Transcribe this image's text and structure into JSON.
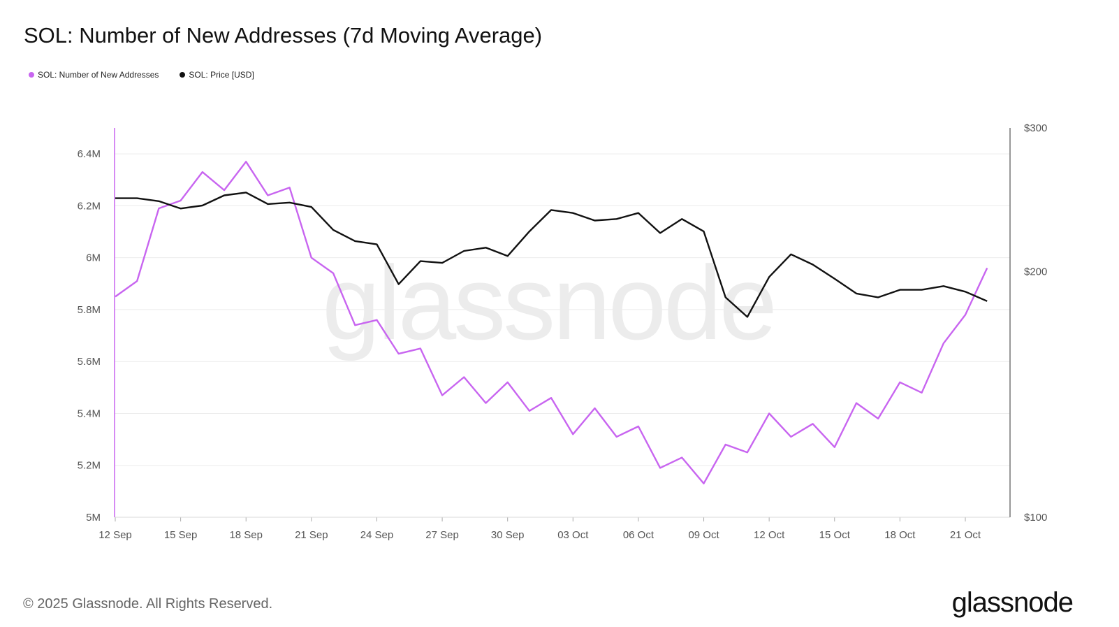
{
  "title": "SOL: Number of New Addresses (7d Moving Average)",
  "legend": [
    {
      "label": "SOL: Number of New Addresses",
      "color": "#c865f0"
    },
    {
      "label": "SOL: Price [USD]",
      "color": "#111111"
    }
  ],
  "watermark": "glassnode",
  "footer": "© 2025 Glassnode. All Rights Reserved.",
  "logo": "glassnode",
  "chart_data": {
    "type": "line",
    "title": "SOL: Number of New Addresses (7d Moving Average)",
    "x": [
      "2025-09-12",
      "2025-09-13",
      "2025-09-14",
      "2025-09-15",
      "2025-09-16",
      "2025-09-17",
      "2025-09-18",
      "2025-09-19",
      "2025-09-20",
      "2025-09-21",
      "2025-09-22",
      "2025-09-23",
      "2025-09-24",
      "2025-09-25",
      "2025-09-26",
      "2025-09-27",
      "2025-09-28",
      "2025-09-29",
      "2025-09-30",
      "2025-10-01",
      "2025-10-02",
      "2025-10-03",
      "2025-10-04",
      "2025-10-05",
      "2025-10-06",
      "2025-10-07",
      "2025-10-08",
      "2025-10-09",
      "2025-10-10",
      "2025-10-11",
      "2025-10-12",
      "2025-10-13",
      "2025-10-14",
      "2025-10-15",
      "2025-10-16",
      "2025-10-17",
      "2025-10-18",
      "2025-10-19",
      "2025-10-20",
      "2025-10-21",
      "2025-10-22"
    ],
    "x_ticks": [
      "12 Sep",
      "15 Sep",
      "18 Sep",
      "21 Sep",
      "24 Sep",
      "27 Sep",
      "30 Sep",
      "03 Oct",
      "06 Oct",
      "09 Oct",
      "12 Oct",
      "15 Oct",
      "18 Oct",
      "21 Oct"
    ],
    "x_tick_dates": [
      "2025-09-12",
      "2025-09-15",
      "2025-09-18",
      "2025-09-21",
      "2025-09-24",
      "2025-09-27",
      "2025-09-30",
      "2025-10-03",
      "2025-10-06",
      "2025-10-09",
      "2025-10-12",
      "2025-10-15",
      "2025-10-18",
      "2025-10-21"
    ],
    "y_left": {
      "ticks": [
        5000000,
        5200000,
        5400000,
        5600000,
        5800000,
        6000000,
        6200000,
        6400000
      ],
      "tick_labels": [
        "5M",
        "5.2M",
        "5.4M",
        "5.6M",
        "5.8M",
        "6M",
        "6.2M",
        "6.4M"
      ],
      "range": [
        5000000,
        6500000
      ]
    },
    "y_right": {
      "scale": "log",
      "ticks": [
        100,
        200,
        300
      ],
      "tick_labels": [
        "$100",
        "$200",
        "$300"
      ],
      "range": [
        100,
        300
      ]
    },
    "grid": true,
    "legend_position": "top-left",
    "series": [
      {
        "name": "SOL: Number of New Addresses",
        "axis": "left",
        "color": "#c865f0",
        "values": [
          5850000,
          5910000,
          6190000,
          6220000,
          6330000,
          6260000,
          6370000,
          6240000,
          6270000,
          6000000,
          5940000,
          5740000,
          5760000,
          5630000,
          5650000,
          5470000,
          5540000,
          5440000,
          5520000,
          5410000,
          5460000,
          5320000,
          5420000,
          5310000,
          5350000,
          5190000,
          5230000,
          5130000,
          5280000,
          5250000,
          5400000,
          5310000,
          5360000,
          5270000,
          5440000,
          5380000,
          5520000,
          5480000,
          5670000,
          5780000,
          5960000
        ]
      },
      {
        "name": "SOL: Price [USD]",
        "axis": "right",
        "color": "#111111",
        "values": [
          246,
          246,
          244,
          239,
          241,
          248,
          250,
          242,
          243,
          240,
          225,
          218,
          216,
          193,
          206,
          205,
          212,
          214,
          209,
          224,
          238,
          236,
          231,
          232,
          236,
          223,
          232,
          224,
          186,
          176,
          197,
          210,
          204,
          196,
          188,
          186,
          190,
          190,
          192,
          189,
          184
        ]
      }
    ]
  }
}
